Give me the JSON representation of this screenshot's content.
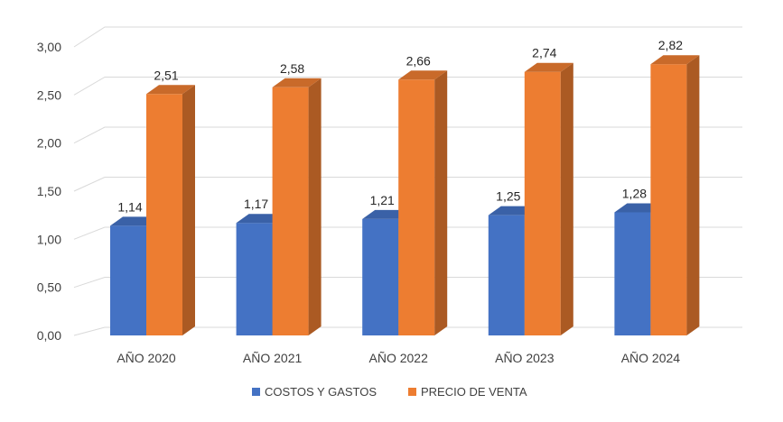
{
  "chart_data": {
    "type": "bar",
    "style": "3d-clustered-column",
    "categories": [
      "AÑO 2020",
      "AÑO 2021",
      "AÑO 2022",
      "AÑO 2023",
      "AÑO 2024"
    ],
    "series": [
      {
        "name": "COSTOS Y GASTOS",
        "values": [
          1.14,
          1.17,
          1.21,
          1.25,
          1.28
        ],
        "labels": [
          "1,14",
          "1,17",
          "1,21",
          "1,25",
          "1,28"
        ],
        "color": "#4472C4"
      },
      {
        "name": "PRECIO DE VENTA",
        "values": [
          2.51,
          2.58,
          2.66,
          2.74,
          2.82
        ],
        "labels": [
          "2,51",
          "2,58",
          "2,66",
          "2,74",
          "2,82"
        ],
        "color": "#ED7D31"
      }
    ],
    "yticks": [
      "0,00",
      "0,50",
      "1,00",
      "1,50",
      "2,00",
      "2,50",
      "3,00"
    ],
    "ylim": [
      0,
      3
    ],
    "grid": true,
    "legend_position": "bottom"
  }
}
